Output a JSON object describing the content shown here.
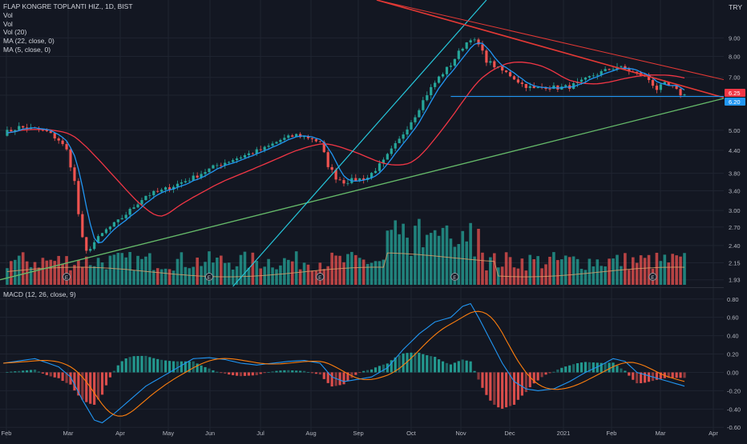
{
  "header": {
    "symbol_title": "FLAP KONGRE TOPLANTI HIZ., 1D, BIST",
    "currency": "TRY",
    "indicators": [
      "Vol",
      "Vol",
      "Vol (20)",
      "MA (22, close, 0)",
      "MA (5, close, 0)"
    ],
    "macd_title": "MACD (12, 26, close, 9)"
  },
  "colors": {
    "background": "#131722",
    "up": "#26a69a",
    "down": "#ef5350",
    "ma_fast": "#2196f3",
    "ma_slow": "#f23645",
    "trend_red": "#e53935",
    "trend_green": "#66bb6a",
    "trend_cyan": "#26c6da",
    "support_blue": "#2196f3",
    "macd_line": "#2196f3",
    "signal_line": "#ff7f0e",
    "vol_ma": "#e0a36a"
  },
  "chart_data": {
    "type": "candlestick",
    "price_axis": {
      "scale": "log",
      "ticks": [
        "9.00",
        "8.00",
        "7.00",
        "6.25",
        "5.00",
        "4.40",
        "3.80",
        "3.40",
        "3.00",
        "2.70",
        "2.40",
        "2.15",
        "1.93"
      ],
      "last_price": "6.25",
      "last_price_value": 6.25,
      "support_level": "6.20",
      "support_level_value": 6.2
    },
    "x_axis": [
      "Feb",
      "Mar",
      "Apr",
      "May",
      "Jun",
      "Jul",
      "Aug",
      "Sep",
      "Oct",
      "Nov",
      "Dec",
      "2021",
      "Feb",
      "Mar",
      "Apr"
    ],
    "earnings_marker": "E",
    "macd_axis": {
      "ticks": [
        "0.80",
        "0.60",
        "0.40",
        "0.20",
        "0.00",
        "-0.20",
        "-0.40",
        "-0.60"
      ]
    },
    "price_path": [
      [
        0,
        4.9
      ],
      [
        4,
        5.1
      ],
      [
        7,
        5.05
      ],
      [
        11,
        4.95
      ],
      [
        14,
        4.7
      ],
      [
        16,
        4.4
      ],
      [
        18,
        3.6
      ],
      [
        19.5,
        2.6
      ],
      [
        21,
        2.3
      ],
      [
        23,
        2.45
      ],
      [
        26,
        2.65
      ],
      [
        29,
        2.8
      ],
      [
        32,
        3.0
      ],
      [
        36,
        3.3
      ],
      [
        40,
        3.4
      ],
      [
        44,
        3.55
      ],
      [
        48,
        3.7
      ],
      [
        50,
        3.8
      ],
      [
        54,
        4.0
      ],
      [
        58,
        4.15
      ],
      [
        62,
        4.3
      ],
      [
        66,
        4.45
      ],
      [
        70,
        4.7
      ],
      [
        74,
        4.85
      ],
      [
        78,
        4.75
      ],
      [
        80,
        4.6
      ],
      [
        82,
        4.0
      ],
      [
        84,
        3.7
      ],
      [
        86,
        3.6
      ],
      [
        89,
        3.65
      ],
      [
        92,
        3.7
      ],
      [
        96,
        4.1
      ],
      [
        100,
        4.7
      ],
      [
        104,
        5.5
      ],
      [
        107,
        6.3
      ],
      [
        110,
        7.0
      ],
      [
        113,
        7.6
      ],
      [
        116,
        8.5
      ],
      [
        118,
        9.0
      ],
      [
        120,
        8.6
      ],
      [
        122,
        7.8
      ],
      [
        125,
        7.4
      ],
      [
        128,
        7.1
      ],
      [
        131,
        6.7
      ],
      [
        134,
        6.5
      ],
      [
        137,
        6.6
      ],
      [
        140,
        6.55
      ],
      [
        143,
        6.6
      ],
      [
        146,
        6.8
      ],
      [
        149,
        7.1
      ],
      [
        152,
        7.3
      ],
      [
        155,
        7.5
      ],
      [
        158,
        7.3
      ],
      [
        161,
        7.1
      ],
      [
        163,
        6.9
      ],
      [
        165,
        6.5
      ],
      [
        167,
        6.7
      ],
      [
        169,
        6.55
      ],
      [
        171,
        6.3
      ],
      [
        172,
        6.25
      ]
    ],
    "macd_path": [
      [
        0,
        0.1
      ],
      [
        8,
        0.15
      ],
      [
        14,
        0.06
      ],
      [
        17,
        -0.05
      ],
      [
        20,
        -0.3
      ],
      [
        23,
        -0.52
      ],
      [
        25,
        -0.55
      ],
      [
        28,
        -0.45
      ],
      [
        32,
        -0.3
      ],
      [
        36,
        -0.15
      ],
      [
        40,
        -0.05
      ],
      [
        44,
        0.05
      ],
      [
        48,
        0.15
      ],
      [
        52,
        0.16
      ],
      [
        56,
        0.14
      ],
      [
        60,
        0.1
      ],
      [
        64,
        0.08
      ],
      [
        68,
        0.1
      ],
      [
        72,
        0.12
      ],
      [
        76,
        0.13
      ],
      [
        80,
        0.1
      ],
      [
        83,
        -0.05
      ],
      [
        86,
        -0.1
      ],
      [
        89,
        -0.08
      ],
      [
        93,
        -0.05
      ],
      [
        97,
        0.05
      ],
      [
        101,
        0.25
      ],
      [
        105,
        0.42
      ],
      [
        109,
        0.55
      ],
      [
        113,
        0.6
      ],
      [
        116,
        0.72
      ],
      [
        118,
        0.75
      ],
      [
        120,
        0.6
      ],
      [
        123,
        0.35
      ],
      [
        126,
        0.1
      ],
      [
        129,
        -0.1
      ],
      [
        132,
        -0.18
      ],
      [
        135,
        -0.2
      ],
      [
        139,
        -0.18
      ],
      [
        143,
        -0.1
      ],
      [
        147,
        0.0
      ],
      [
        151,
        0.08
      ],
      [
        154,
        0.15
      ],
      [
        157,
        0.12
      ],
      [
        160,
        0.0
      ],
      [
        164,
        -0.05
      ],
      [
        168,
        -0.1
      ],
      [
        172,
        -0.15
      ]
    ]
  }
}
